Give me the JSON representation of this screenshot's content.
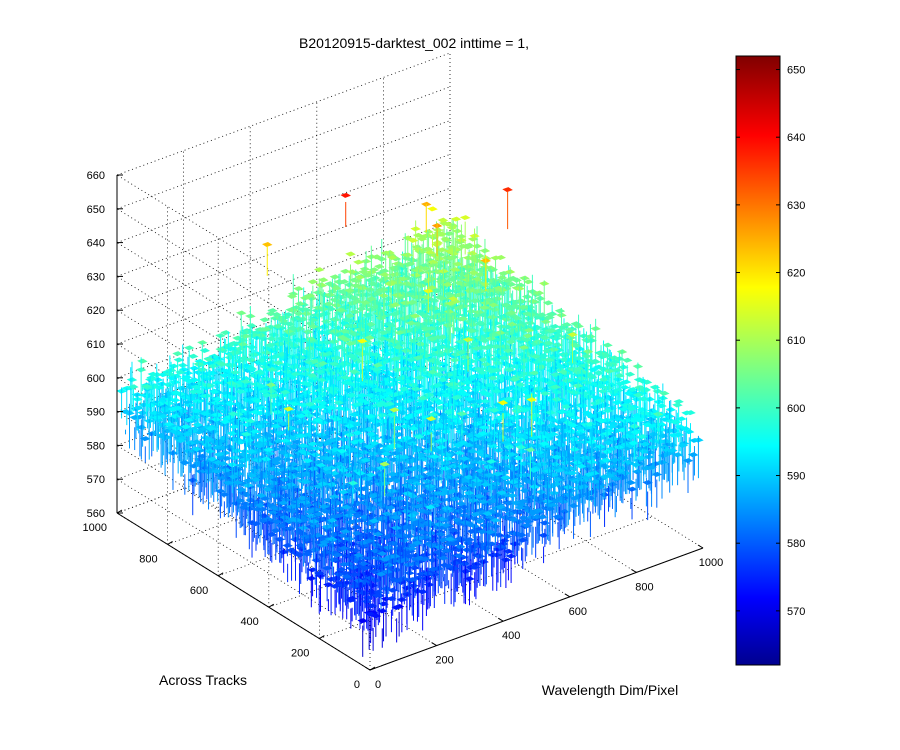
{
  "chart_data": {
    "type": "surface3d",
    "title": "B20120915-darktest_002 inttime = 1,",
    "xlabel": "Wavelength Dim/Pixel",
    "ylabel": "Across Tracks",
    "zlabel": "",
    "xlim": [
      0,
      1000
    ],
    "ylim": [
      0,
      1000
    ],
    "zlim": [
      560,
      660
    ],
    "x_ticks": [
      "0",
      "200",
      "400",
      "600",
      "800",
      "1000"
    ],
    "y_ticks": [
      "0",
      "200",
      "400",
      "600",
      "800",
      "1000"
    ],
    "z_ticks": [
      "560",
      "570",
      "580",
      "590",
      "600",
      "610",
      "620",
      "630",
      "640",
      "650",
      "660"
    ],
    "colorbar": {
      "colormap": "jet",
      "min": 562,
      "max": 652,
      "ticks": [
        "570",
        "580",
        "590",
        "600",
        "610",
        "620",
        "630",
        "640",
        "650"
      ]
    },
    "surface": {
      "description_trend": "noisy dark-frame data rising from about 577 near (x=0,y=0) to about 610 near (x=1000,y=1000)",
      "base_at_origin": 577,
      "gradient_x": 0.016,
      "gradient_y": 0.017,
      "noise_amplitude": 9,
      "spike_max": 652
    },
    "grid": true
  }
}
